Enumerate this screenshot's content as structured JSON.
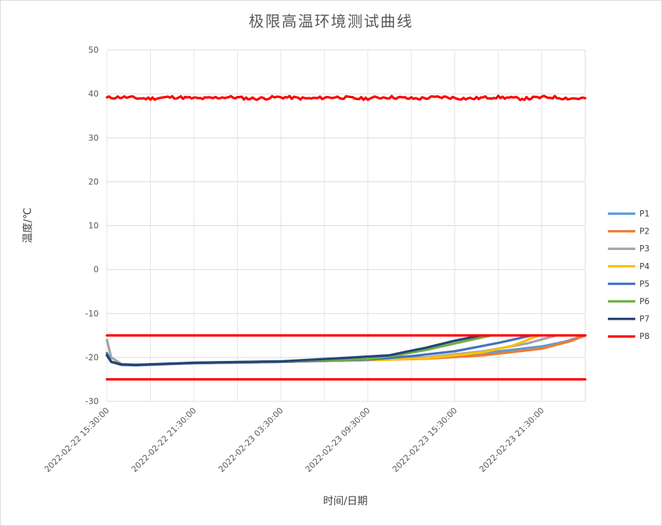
{
  "chart_data": {
    "type": "line",
    "title": "极限高温环境测试曲线",
    "xlabel": "时间/日期",
    "ylabel": "温度/℃",
    "ylim": [
      -30,
      50
    ],
    "yticks": [
      -30,
      -20,
      -10,
      0,
      10,
      20,
      30,
      40,
      50
    ],
    "x_unit": "hours since 2022-02-22 15:30:00",
    "xlim": [
      0,
      33
    ],
    "xticks": [
      0,
      6,
      12,
      18,
      24,
      30
    ],
    "xtick_labels": [
      "2022-02-22 15:30:00",
      "2022-02-22 21:30:00",
      "2022-02-23 03:30:00",
      "2022-02-23 09:30:00",
      "2022-02-23 15:30:00",
      "2022-02-23 21:30:00"
    ],
    "grid": true,
    "legend_position": "right",
    "series": [
      {
        "name": "P1",
        "color": "#5b9bd5",
        "x": [
          0,
          0.3,
          1,
          2,
          6,
          12,
          18,
          22,
          26,
          30,
          31.5,
          33
        ],
        "y": [
          -19.5,
          -21,
          -21.6,
          -21.7,
          -21.3,
          -21.0,
          -20.6,
          -20.1,
          -19.0,
          -17.5,
          -16.5,
          -15.0
        ]
      },
      {
        "name": "P2",
        "color": "#ed7d31",
        "x": [
          0,
          0.3,
          1,
          2,
          6,
          12,
          18,
          22,
          26,
          30,
          32,
          33
        ],
        "y": [
          -19.5,
          -21,
          -21.6,
          -21.7,
          -21.3,
          -21.0,
          -20.6,
          -20.3,
          -19.5,
          -18.0,
          -16.3,
          -15.0
        ]
      },
      {
        "name": "P3",
        "color": "#a5a5a5",
        "x": [
          0,
          0.3,
          1,
          2,
          6,
          12,
          18,
          22,
          26,
          29,
          31,
          33
        ],
        "y": [
          -16.0,
          -20,
          -21.5,
          -21.7,
          -21.3,
          -21.0,
          -20.5,
          -20.0,
          -18.6,
          -16.8,
          -15.0,
          -15.0
        ]
      },
      {
        "name": "P4",
        "color": "#ffc000",
        "x": [
          0,
          0.3,
          1,
          2,
          6,
          12,
          18,
          22,
          26,
          28,
          29.8,
          33
        ],
        "y": [
          -19.5,
          -21,
          -21.6,
          -21.7,
          -21.3,
          -21.0,
          -20.6,
          -20.2,
          -18.8,
          -17.3,
          -15.0,
          -15.0
        ]
      },
      {
        "name": "P5",
        "color": "#4472c4",
        "x": [
          0,
          0.3,
          1,
          2,
          6,
          12,
          18,
          21,
          24,
          27,
          29.3,
          33
        ],
        "y": [
          -19.0,
          -21,
          -21.7,
          -21.8,
          -21.3,
          -21.0,
          -20.5,
          -19.7,
          -18.6,
          -16.7,
          -15.0,
          -15.0
        ]
      },
      {
        "name": "P6",
        "color": "#70ad47",
        "x": [
          0,
          0.3,
          1,
          2,
          6,
          12,
          18,
          20,
          22,
          24,
          26.5,
          33
        ],
        "y": [
          -19.5,
          -21,
          -21.6,
          -21.7,
          -21.2,
          -20.9,
          -20.4,
          -19.5,
          -18.3,
          -16.8,
          -15.0,
          -15.0
        ]
      },
      {
        "name": "P7",
        "color": "#264478",
        "x": [
          0,
          0.3,
          1,
          2,
          6,
          12,
          17,
          19.5,
          20.5,
          22,
          24,
          25.8,
          33
        ],
        "y": [
          -19.5,
          -21,
          -21.6,
          -21.7,
          -21.2,
          -20.9,
          -20.0,
          -19.5,
          -18.8,
          -17.8,
          -16.2,
          -15.0,
          -15.0
        ]
      },
      {
        "name": "P8",
        "color": "#ff0000",
        "x": [
          0,
          33
        ],
        "y": [
          -15,
          -15
        ],
        "x2": [
          0,
          33
        ],
        "y2": [
          -25,
          -25
        ],
        "env_mean": 39.1,
        "env_jitter": 0.35
      }
    ]
  }
}
